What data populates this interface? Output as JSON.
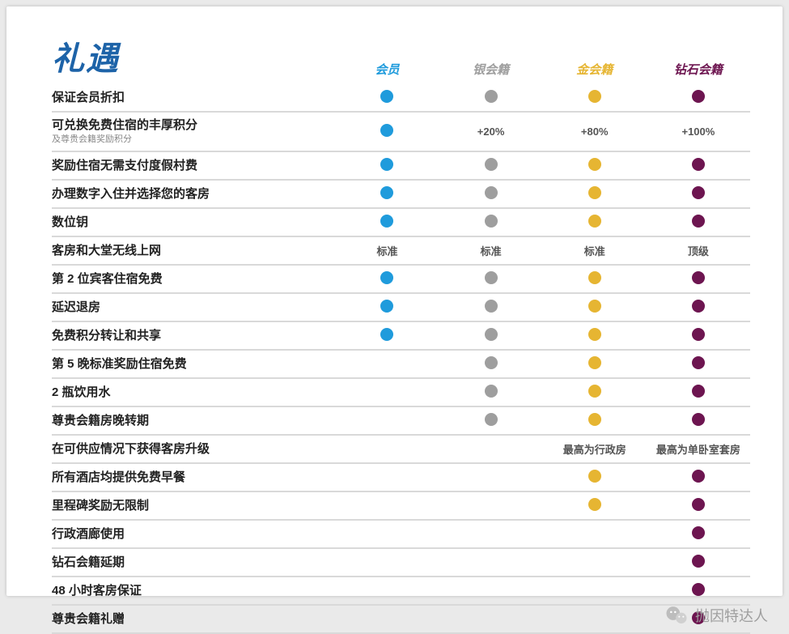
{
  "colors": {
    "title": "#1d63a8",
    "member": "#1f9bdc",
    "silver": "#9e9e9e",
    "gold": "#e6b532",
    "diamond": "#6d1550"
  },
  "title": "礼遇",
  "tiers": [
    {
      "key": "member",
      "label": "会员"
    },
    {
      "key": "silver",
      "label": "银会籍"
    },
    {
      "key": "gold",
      "label": "金会籍"
    },
    {
      "key": "diamond",
      "label": "钻石会籍"
    }
  ],
  "rows": [
    {
      "label": "保证会员折扣",
      "cells": [
        "dot",
        "dot",
        "dot",
        "dot"
      ]
    },
    {
      "label": "可兑换免费住宿的丰厚积分",
      "sublabel": "及尊贵会籍奖励积分",
      "cells": [
        "dot",
        "+20%",
        "+80%",
        "+100%"
      ]
    },
    {
      "label": "奖励住宿无需支付度假村费",
      "cells": [
        "dot",
        "dot",
        "dot",
        "dot"
      ]
    },
    {
      "label": "办理数字入住并选择您的客房",
      "cells": [
        "dot",
        "dot",
        "dot",
        "dot"
      ]
    },
    {
      "label": "数位钥",
      "cells": [
        "dot",
        "dot",
        "dot",
        "dot"
      ]
    },
    {
      "label": "客房和大堂无线上网",
      "cells": [
        "标准",
        "标准",
        "标准",
        "顶级"
      ]
    },
    {
      "label": "第 2 位宾客住宿免费",
      "cells": [
        "dot",
        "dot",
        "dot",
        "dot"
      ]
    },
    {
      "label": "延迟退房",
      "cells": [
        "dot",
        "dot",
        "dot",
        "dot"
      ]
    },
    {
      "label": "免费积分转让和共享",
      "cells": [
        "dot",
        "dot",
        "dot",
        "dot"
      ]
    },
    {
      "label": "第 5 晚标准奖励住宿免费",
      "cells": [
        "",
        "dot",
        "dot",
        "dot"
      ]
    },
    {
      "label": "2 瓶饮用水",
      "cells": [
        "",
        "dot",
        "dot",
        "dot"
      ]
    },
    {
      "label": "尊贵会籍房晚转期",
      "cells": [
        "",
        "dot",
        "dot",
        "dot"
      ]
    },
    {
      "label": "在可供应情况下获得客房升级",
      "cells": [
        "",
        "",
        "最高为行政房",
        "最高为单卧室套房"
      ]
    },
    {
      "label": "所有酒店均提供免费早餐",
      "cells": [
        "",
        "",
        "dot",
        "dot"
      ]
    },
    {
      "label": "里程碑奖励无限制",
      "cells": [
        "",
        "",
        "dot",
        "dot"
      ]
    },
    {
      "label": "行政酒廊使用",
      "cells": [
        "",
        "",
        "",
        "dot"
      ]
    },
    {
      "label": "钻石会籍延期",
      "cells": [
        "",
        "",
        "",
        "dot"
      ]
    },
    {
      "label": "48 小时客房保证",
      "cells": [
        "",
        "",
        "",
        "dot"
      ]
    },
    {
      "label": "尊贵会籍礼赠",
      "cells": [
        "",
        "",
        "",
        "dot"
      ]
    }
  ],
  "watermark": {
    "text": "抛因特达人"
  }
}
